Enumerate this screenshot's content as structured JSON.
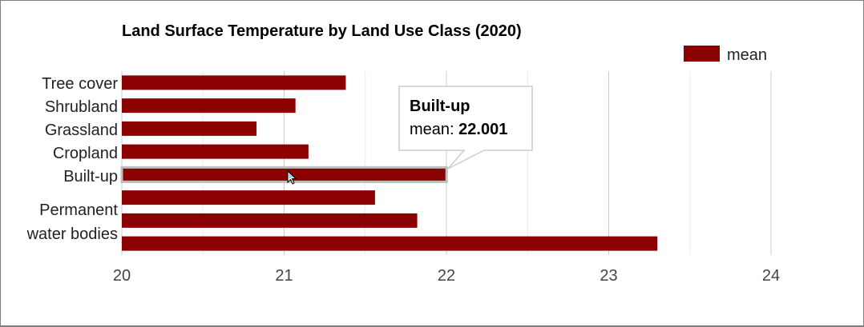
{
  "chart_data": {
    "type": "bar",
    "orientation": "horizontal",
    "title": "Land Surface Temperature by Land Use Class (2020)",
    "xlabel": "",
    "ylabel": "",
    "categories": [
      "Tree cover",
      "Shrubland",
      "Grassland",
      "Cropland",
      "Built-up",
      "",
      "",
      "Permanent water bodies"
    ],
    "visible_category_labels": [
      "Tree cover",
      "Shrubland",
      "Grassland",
      "Cropland",
      "Built-up",
      "Permanent",
      "water bodies"
    ],
    "series": [
      {
        "name": "mean",
        "values": [
          21.38,
          21.07,
          20.83,
          21.15,
          22.001,
          21.56,
          21.82,
          23.3
        ]
      }
    ],
    "xlim": [
      20,
      24
    ],
    "x_ticks": [
      "20",
      "21",
      "22",
      "23",
      "24"
    ],
    "grid": true,
    "legend": "top-right",
    "bar_color": "#8b0000",
    "highlighted_index": 4,
    "tooltip": {
      "title": "Built-up",
      "label": "mean: ",
      "value": "22.001"
    }
  }
}
